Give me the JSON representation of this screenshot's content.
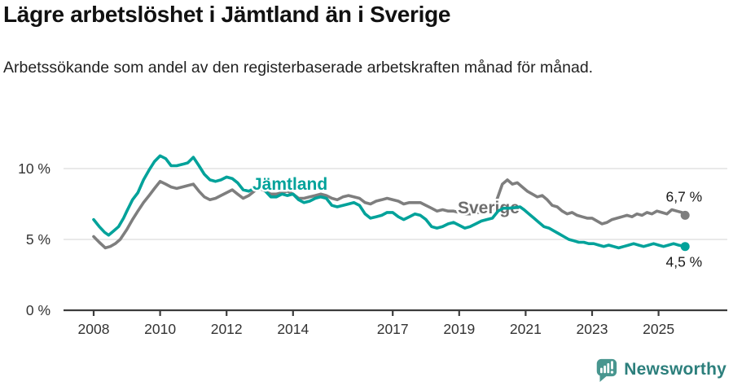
{
  "header": {
    "title": "Lägre arbetslöshet i Jämtland än i Sverige",
    "subtitle": "Arbetssökande som andel av den registerbaserade arbetskraften månad för månad."
  },
  "chart_data": {
    "type": "line",
    "unit": "%",
    "grid": true,
    "legend_position": "inline-labels",
    "x_axis": {
      "ticks": [
        2008,
        2010,
        2012,
        2014,
        2017,
        2019,
        2021,
        2023,
        2025
      ],
      "tick_labels": [
        "2008",
        "2010",
        "2012",
        "2014",
        "2017",
        "2019",
        "2021",
        "2023",
        "2025"
      ],
      "range": [
        2007.8,
        2027.0
      ]
    },
    "y_axis": {
      "ticks": [
        0,
        5,
        10
      ],
      "tick_labels": [
        "0 %",
        "5 %",
        "10 %"
      ],
      "range": [
        0,
        11.8
      ]
    },
    "series": [
      {
        "name": "Sverige",
        "color": "#7e7e7e",
        "label_color": "#6e6e6e",
        "end_label": "6,7 %",
        "end_value": 6.7,
        "points": [
          [
            2008.0,
            5.2
          ],
          [
            2008.17,
            4.8
          ],
          [
            2008.35,
            4.4
          ],
          [
            2008.5,
            4.5
          ],
          [
            2008.65,
            4.7
          ],
          [
            2008.8,
            5.0
          ],
          [
            2009.0,
            5.7
          ],
          [
            2009.17,
            6.4
          ],
          [
            2009.33,
            7.0
          ],
          [
            2009.5,
            7.6
          ],
          [
            2009.67,
            8.1
          ],
          [
            2009.83,
            8.6
          ],
          [
            2010.0,
            9.1
          ],
          [
            2010.17,
            8.9
          ],
          [
            2010.33,
            8.7
          ],
          [
            2010.5,
            8.6
          ],
          [
            2010.67,
            8.7
          ],
          [
            2010.83,
            8.8
          ],
          [
            2011.0,
            8.9
          ],
          [
            2011.17,
            8.4
          ],
          [
            2011.33,
            8.0
          ],
          [
            2011.5,
            7.8
          ],
          [
            2011.67,
            7.9
          ],
          [
            2011.83,
            8.1
          ],
          [
            2012.0,
            8.3
          ],
          [
            2012.17,
            8.5
          ],
          [
            2012.33,
            8.2
          ],
          [
            2012.5,
            7.9
          ],
          [
            2012.67,
            8.1
          ],
          [
            2012.83,
            8.4
          ],
          [
            2013.0,
            8.6
          ],
          [
            2013.17,
            8.4
          ],
          [
            2013.33,
            8.2
          ],
          [
            2013.5,
            8.2
          ],
          [
            2013.67,
            8.3
          ],
          [
            2013.83,
            8.4
          ],
          [
            2014.0,
            8.2
          ],
          [
            2014.17,
            7.9
          ],
          [
            2014.33,
            7.9
          ],
          [
            2014.5,
            8.0
          ],
          [
            2014.67,
            8.1
          ],
          [
            2014.83,
            8.2
          ],
          [
            2015.0,
            8.1
          ],
          [
            2015.17,
            7.9
          ],
          [
            2015.33,
            7.8
          ],
          [
            2015.5,
            8.0
          ],
          [
            2015.67,
            8.1
          ],
          [
            2015.83,
            8.0
          ],
          [
            2016.0,
            7.9
          ],
          [
            2016.17,
            7.6
          ],
          [
            2016.33,
            7.5
          ],
          [
            2016.5,
            7.7
          ],
          [
            2016.67,
            7.8
          ],
          [
            2016.83,
            7.9
          ],
          [
            2017.0,
            7.8
          ],
          [
            2017.17,
            7.7
          ],
          [
            2017.33,
            7.5
          ],
          [
            2017.5,
            7.6
          ],
          [
            2017.67,
            7.6
          ],
          [
            2017.83,
            7.6
          ],
          [
            2018.0,
            7.4
          ],
          [
            2018.17,
            7.2
          ],
          [
            2018.33,
            7.0
          ],
          [
            2018.5,
            7.1
          ],
          [
            2018.67,
            7.0
          ],
          [
            2018.83,
            7.0
          ],
          [
            2019.0,
            6.9
          ],
          [
            2019.17,
            6.8
          ],
          [
            2019.33,
            6.8
          ],
          [
            2019.5,
            6.9
          ],
          [
            2019.67,
            6.9
          ],
          [
            2019.83,
            7.0
          ],
          [
            2020.0,
            7.1
          ],
          [
            2020.15,
            7.9
          ],
          [
            2020.3,
            8.9
          ],
          [
            2020.45,
            9.2
          ],
          [
            2020.6,
            8.9
          ],
          [
            2020.75,
            9.0
          ],
          [
            2020.9,
            8.7
          ],
          [
            2021.05,
            8.4
          ],
          [
            2021.2,
            8.2
          ],
          [
            2021.35,
            8.0
          ],
          [
            2021.5,
            8.1
          ],
          [
            2021.65,
            7.8
          ],
          [
            2021.8,
            7.4
          ],
          [
            2021.95,
            7.3
          ],
          [
            2022.1,
            7.0
          ],
          [
            2022.25,
            6.8
          ],
          [
            2022.4,
            6.9
          ],
          [
            2022.55,
            6.7
          ],
          [
            2022.7,
            6.6
          ],
          [
            2022.85,
            6.5
          ],
          [
            2023.0,
            6.5
          ],
          [
            2023.15,
            6.3
          ],
          [
            2023.3,
            6.1
          ],
          [
            2023.45,
            6.2
          ],
          [
            2023.6,
            6.4
          ],
          [
            2023.75,
            6.5
          ],
          [
            2023.9,
            6.6
          ],
          [
            2024.05,
            6.7
          ],
          [
            2024.2,
            6.6
          ],
          [
            2024.35,
            6.8
          ],
          [
            2024.5,
            6.7
          ],
          [
            2024.65,
            6.9
          ],
          [
            2024.8,
            6.8
          ],
          [
            2024.95,
            7.0
          ],
          [
            2025.1,
            6.9
          ],
          [
            2025.25,
            6.8
          ],
          [
            2025.4,
            7.1
          ],
          [
            2025.55,
            7.0
          ],
          [
            2025.7,
            6.9
          ],
          [
            2025.8,
            6.7
          ]
        ]
      },
      {
        "name": "Jämtland",
        "color": "#00a29a",
        "label_color": "#00a29a",
        "end_label": "4,5 %",
        "end_value": 4.5,
        "points": [
          [
            2008.0,
            6.4
          ],
          [
            2008.17,
            5.9
          ],
          [
            2008.33,
            5.5
          ],
          [
            2008.45,
            5.3
          ],
          [
            2008.6,
            5.6
          ],
          [
            2008.75,
            5.9
          ],
          [
            2008.9,
            6.5
          ],
          [
            2009.0,
            7.0
          ],
          [
            2009.17,
            7.8
          ],
          [
            2009.33,
            8.3
          ],
          [
            2009.5,
            9.2
          ],
          [
            2009.67,
            9.9
          ],
          [
            2009.83,
            10.5
          ],
          [
            2010.0,
            10.9
          ],
          [
            2010.17,
            10.7
          ],
          [
            2010.33,
            10.2
          ],
          [
            2010.5,
            10.2
          ],
          [
            2010.67,
            10.3
          ],
          [
            2010.83,
            10.4
          ],
          [
            2011.0,
            10.8
          ],
          [
            2011.17,
            10.2
          ],
          [
            2011.33,
            9.6
          ],
          [
            2011.5,
            9.2
          ],
          [
            2011.67,
            9.1
          ],
          [
            2011.83,
            9.2
          ],
          [
            2012.0,
            9.4
          ],
          [
            2012.17,
            9.3
          ],
          [
            2012.33,
            9.0
          ],
          [
            2012.5,
            8.5
          ],
          [
            2012.67,
            8.4
          ],
          [
            2012.83,
            8.6
          ],
          [
            2013.0,
            8.8
          ],
          [
            2013.17,
            8.4
          ],
          [
            2013.33,
            8.0
          ],
          [
            2013.5,
            8.0
          ],
          [
            2013.67,
            8.2
          ],
          [
            2013.83,
            8.1
          ],
          [
            2014.0,
            8.2
          ],
          [
            2014.17,
            7.8
          ],
          [
            2014.33,
            7.6
          ],
          [
            2014.5,
            7.7
          ],
          [
            2014.67,
            7.9
          ],
          [
            2014.83,
            8.0
          ],
          [
            2015.0,
            7.9
          ],
          [
            2015.17,
            7.4
          ],
          [
            2015.33,
            7.3
          ],
          [
            2015.5,
            7.4
          ],
          [
            2015.67,
            7.5
          ],
          [
            2015.83,
            7.6
          ],
          [
            2016.0,
            7.4
          ],
          [
            2016.17,
            6.8
          ],
          [
            2016.33,
            6.5
          ],
          [
            2016.5,
            6.6
          ],
          [
            2016.67,
            6.7
          ],
          [
            2016.83,
            6.9
          ],
          [
            2017.0,
            6.9
          ],
          [
            2017.17,
            6.6
          ],
          [
            2017.33,
            6.4
          ],
          [
            2017.5,
            6.6
          ],
          [
            2017.67,
            6.8
          ],
          [
            2017.83,
            6.7
          ],
          [
            2018.0,
            6.4
          ],
          [
            2018.17,
            5.9
          ],
          [
            2018.33,
            5.8
          ],
          [
            2018.5,
            5.9
          ],
          [
            2018.67,
            6.1
          ],
          [
            2018.83,
            6.2
          ],
          [
            2019.0,
            6.0
          ],
          [
            2019.17,
            5.8
          ],
          [
            2019.33,
            5.9
          ],
          [
            2019.5,
            6.1
          ],
          [
            2019.67,
            6.3
          ],
          [
            2019.83,
            6.4
          ],
          [
            2020.0,
            6.5
          ],
          [
            2020.17,
            7.0
          ],
          [
            2020.33,
            7.2
          ],
          [
            2020.5,
            7.2
          ],
          [
            2020.67,
            7.25
          ],
          [
            2020.83,
            7.3
          ],
          [
            2020.95,
            7.1
          ],
          [
            2021.1,
            6.8
          ],
          [
            2021.25,
            6.5
          ],
          [
            2021.4,
            6.2
          ],
          [
            2021.55,
            5.9
          ],
          [
            2021.7,
            5.8
          ],
          [
            2021.85,
            5.6
          ],
          [
            2022.0,
            5.4
          ],
          [
            2022.15,
            5.2
          ],
          [
            2022.3,
            5.0
          ],
          [
            2022.45,
            4.9
          ],
          [
            2022.6,
            4.8
          ],
          [
            2022.75,
            4.8
          ],
          [
            2022.9,
            4.7
          ],
          [
            2023.05,
            4.7
          ],
          [
            2023.2,
            4.6
          ],
          [
            2023.35,
            4.5
          ],
          [
            2023.5,
            4.6
          ],
          [
            2023.65,
            4.5
          ],
          [
            2023.8,
            4.4
          ],
          [
            2023.95,
            4.5
          ],
          [
            2024.1,
            4.6
          ],
          [
            2024.25,
            4.7
          ],
          [
            2024.4,
            4.6
          ],
          [
            2024.55,
            4.5
          ],
          [
            2024.7,
            4.6
          ],
          [
            2024.85,
            4.7
          ],
          [
            2025.0,
            4.6
          ],
          [
            2025.15,
            4.5
          ],
          [
            2025.3,
            4.6
          ],
          [
            2025.45,
            4.7
          ],
          [
            2025.6,
            4.6
          ],
          [
            2025.8,
            4.5
          ]
        ]
      }
    ]
  },
  "footer": {
    "brand": "Newsworthy",
    "brand_color": "#2c7f7c",
    "icon_color": "#48968f"
  }
}
